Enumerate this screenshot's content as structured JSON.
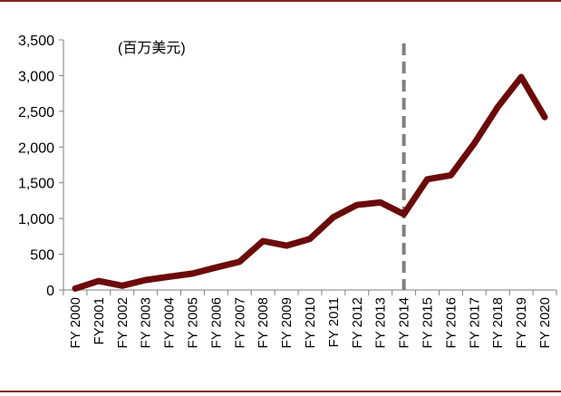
{
  "chart_data": {
    "type": "line",
    "unit_note": "(百万美元)",
    "categories": [
      "FY 2000",
      "FY2001",
      "FY 2002",
      "FY 2003",
      "FY 2004",
      "FY 2005",
      "FY 2006",
      "FY 2007",
      "FY 2008",
      "FY 2009",
      "FY 2010",
      "FY 2011",
      "FY 2012",
      "FY 2013",
      "FY 2014",
      "FY 2015",
      "FY 2016",
      "FY 2017",
      "FY 2018",
      "FY 2019",
      "FY 2020"
    ],
    "series": [
      {
        "values": [
          20,
          125,
          60,
          140,
          185,
          230,
          315,
          395,
          685,
          620,
          715,
          1020,
          1190,
          1225,
          1060,
          1550,
          1605,
          2050,
          2560,
          2980,
          2420
        ]
      }
    ],
    "ylim": [
      0,
      3500
    ],
    "yticks": [
      "0",
      "500",
      "1,000",
      "1,500",
      "2,000",
      "2,500",
      "3,000",
      "3,500"
    ],
    "ytick_values": [
      0,
      500,
      1000,
      1500,
      2000,
      2500,
      3000,
      3500
    ],
    "divider_category": "FY 2014",
    "colors": {
      "line": "#6b0a0a",
      "divider": "#808080",
      "rule": "#8b1e1e",
      "axis": "#7f7f7f",
      "text": "#000000"
    }
  }
}
